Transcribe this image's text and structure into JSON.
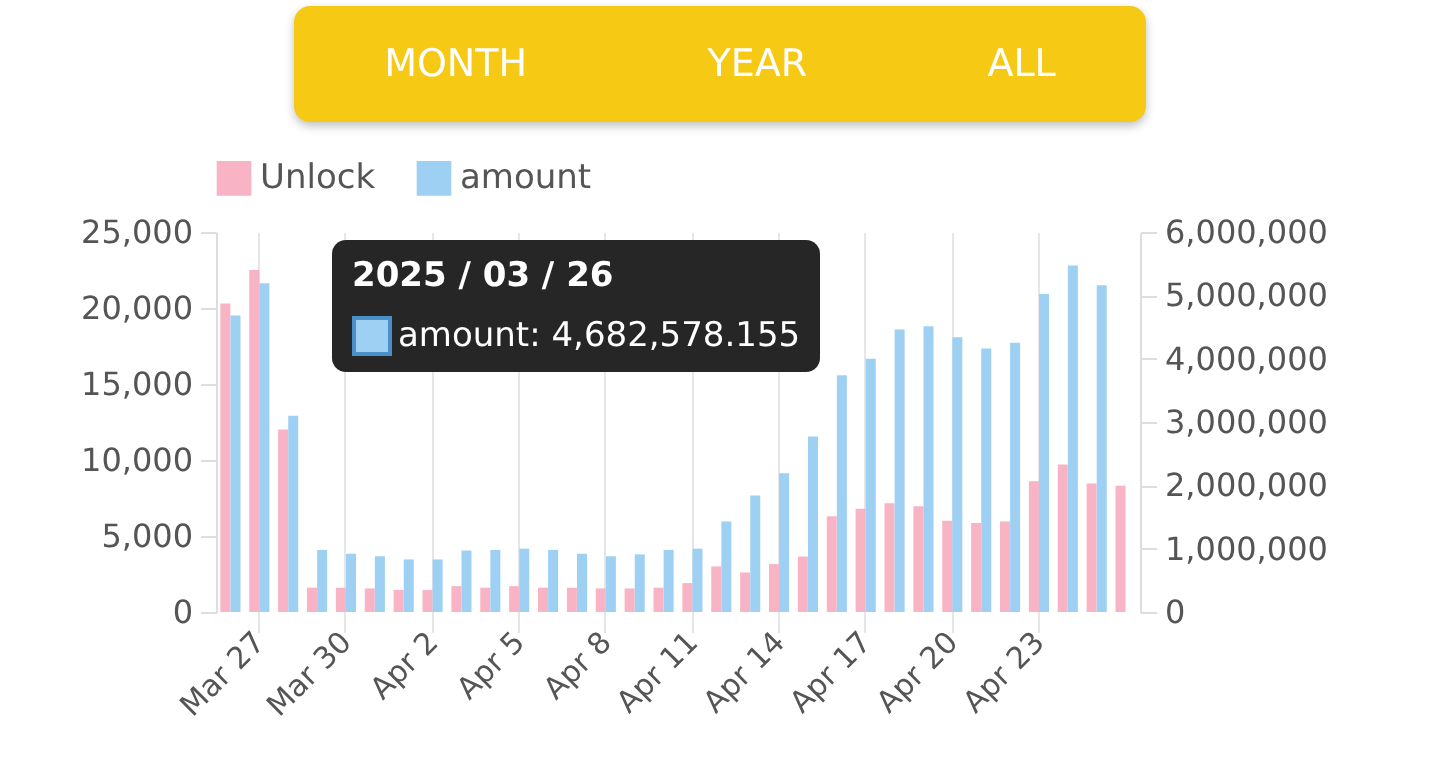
{
  "chart_data": {
    "type": "bar",
    "categories": [
      null,
      "Mar 27",
      null,
      null,
      "Mar 30",
      null,
      null,
      "Apr 2",
      null,
      null,
      "Apr 5",
      null,
      null,
      "Apr 8",
      null,
      null,
      "Apr 11",
      null,
      null,
      "Apr 14",
      null,
      null,
      "Apr 17",
      null,
      null,
      "Apr 20",
      null,
      null,
      "Apr 23",
      null,
      null,
      null
    ],
    "series": [
      {
        "name": "Unlock",
        "color": "#f8b3c4",
        "values": [
          20300,
          22500,
          12000,
          1600,
          1600,
          1550,
          1450,
          1450,
          1700,
          1600,
          1700,
          1600,
          1600,
          1550,
          1550,
          1600,
          1900,
          3000,
          2600,
          3150,
          3650,
          6300,
          6800,
          7150,
          6950,
          6000,
          5850,
          5950,
          8600,
          9700,
          8450,
          8300
        ]
      },
      {
        "name": "amount",
        "color": "#9dd0f2",
        "axis": "y2",
        "values": [
          4680000,
          5190000,
          3100000,
          980000,
          920000,
          880000,
          830000,
          830000,
          970000,
          980000,
          1000000,
          980000,
          920000,
          880000,
          910000,
          980000,
          1000000,
          1430000,
          1840000,
          2190000,
          2770000,
          3740000,
          4000000,
          4460000,
          4510000,
          4340000,
          4160000,
          4250000,
          5020000,
          5470000,
          5160000,
          null
        ]
      }
    ],
    "ylim": [
      0,
      25000
    ],
    "yticks": [
      0,
      {
        "value": 5000,
        "label": "5,000"
      },
      {
        "value": 10000,
        "label": "10,000"
      },
      {
        "value": 15000,
        "label": "15,000"
      },
      {
        "value": 20000,
        "label": "20,000"
      },
      {
        "value": 25000,
        "label": "25,000"
      }
    ],
    "y2lim": [
      0,
      6000000
    ],
    "y2ticks": [
      0,
      {
        "value": 1000000,
        "label": "1,000,000"
      },
      {
        "value": 2000000,
        "label": "2,000,000"
      },
      {
        "value": 3000000,
        "label": "3,000,000"
      },
      {
        "value": 4000000,
        "label": "4,000,000"
      },
      {
        "value": 5000000,
        "label": "5,000,000"
      },
      {
        "value": 6000000,
        "label": "6,000,000"
      }
    ],
    "grid": "x",
    "legend": "top",
    "annotations": [
      "MONTH",
      "YEAR",
      "ALL",
      "2025 / 03 / 26",
      "amount: 4,682,578.155"
    ]
  }
}
